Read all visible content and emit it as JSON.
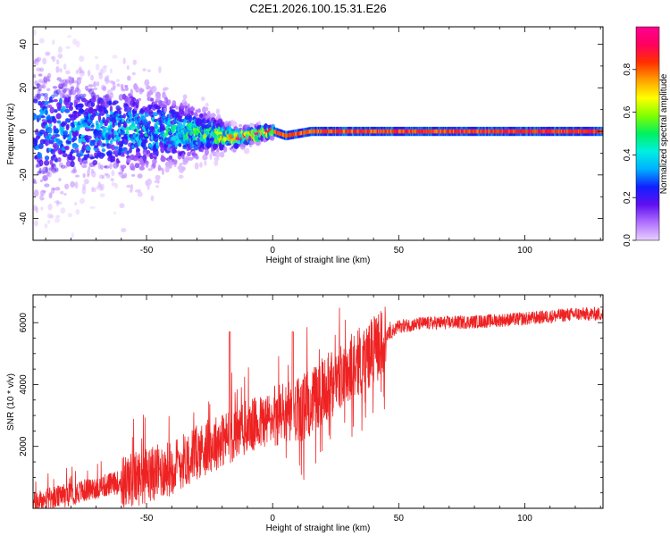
{
  "title": "C2E1.2026.100.15.31.E26",
  "colors": {
    "snr_line": "#ee2222",
    "colormap": [
      "#e8d0ff",
      "#b070ff",
      "#6010f0",
      "#1020ff",
      "#00b0ff",
      "#00f0e0",
      "#00f060",
      "#80ff00",
      "#ffff00",
      "#ffa000",
      "#ff3000",
      "#ff0060",
      "#ff0090"
    ]
  },
  "chart_data": [
    {
      "type": "heatmap",
      "xlabel": "Height of straight line (km)",
      "ylabel": "Frequency (Hz)",
      "xlim": [
        -95,
        131
      ],
      "ylim": [
        -50,
        48
      ],
      "xticks": [
        -50,
        0,
        50,
        100
      ],
      "yticks": [
        -40,
        -20,
        0,
        20,
        40
      ],
      "xtick_labels": [
        "-50",
        "0",
        "50",
        "100"
      ],
      "ytick_labels": [
        "-40",
        "-20",
        "0",
        "20",
        "40"
      ],
      "colorbar": {
        "label": "Normalized spectral amplitude",
        "range": [
          0,
          1
        ],
        "ticks": [
          0.0,
          0.2,
          0.4,
          0.6,
          0.8
        ],
        "tick_labels": [
          "0.0",
          "0.2",
          "0.4",
          "0.6",
          "0.8"
        ]
      },
      "ridge": [
        {
          "x": -95,
          "f_center": 1,
          "f_spread": 22,
          "amp": 0.25
        },
        {
          "x": -70,
          "f_center": 1,
          "f_spread": 14,
          "amp": 0.3
        },
        {
          "x": -40,
          "f_center": 0,
          "f_spread": 9,
          "amp": 0.35
        },
        {
          "x": -25,
          "f_center": -1,
          "f_spread": 5,
          "amp": 0.45
        },
        {
          "x": -15,
          "f_center": -3,
          "f_spread": 2.5,
          "amp": 0.75
        },
        {
          "x": -5,
          "f_center": -1,
          "f_spread": 2,
          "amp": 0.8
        },
        {
          "x": 0,
          "f_center": 0,
          "f_spread": 1.5,
          "amp": 0.9
        },
        {
          "x": 5,
          "f_center": -2,
          "f_spread": 1.5,
          "amp": 0.85
        },
        {
          "x": 15,
          "f_center": 0,
          "f_spread": 1.5,
          "amp": 0.9
        },
        {
          "x": 131,
          "f_center": 0,
          "f_spread": 1.5,
          "amp": 0.92
        }
      ]
    },
    {
      "type": "line",
      "xlabel": "Height of straight line (km)",
      "ylabel": "SNR (10 * v/v)",
      "xlim": [
        -95,
        131
      ],
      "ylim": [
        0,
        6900
      ],
      "xticks": [
        -50,
        0,
        50,
        100
      ],
      "yticks": [
        2000,
        4000,
        6000
      ],
      "xtick_labels": [
        "-50",
        "0",
        "50",
        "100"
      ],
      "ytick_labels": [
        "2000",
        "4000",
        "6000"
      ],
      "series": [
        {
          "x": [
            -95,
            -80,
            -60,
            -40,
            -30,
            -20,
            -10,
            0,
            10,
            20,
            30,
            40,
            45,
            50,
            60,
            80,
            100,
            120,
            131
          ],
          "y": [
            200,
            500,
            900,
            1400,
            1900,
            2300,
            2700,
            3000,
            3200,
            3900,
            4600,
            5200,
            5600,
            5900,
            6000,
            6050,
            6150,
            6300,
            6300
          ]
        }
      ]
    }
  ]
}
